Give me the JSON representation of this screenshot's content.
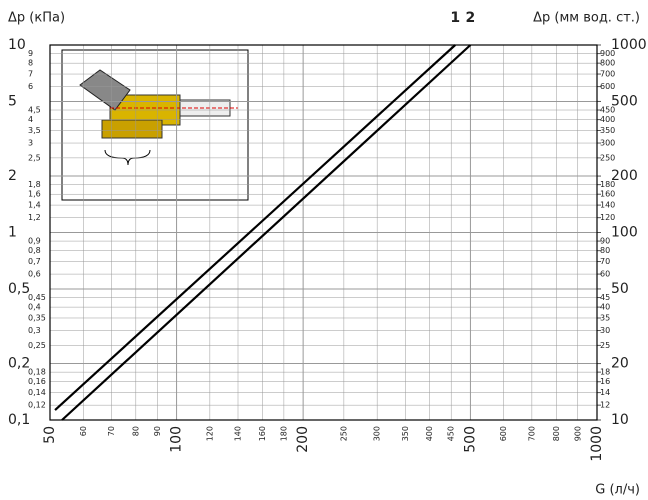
{
  "chart_data": {
    "type": "line",
    "y_title": "Δp (кПа)",
    "y2_title": "Δp (мм вод. ст.)",
    "x_title": "G (л/ч)",
    "log_x": true,
    "log_y": true,
    "grid": true,
    "xlim": [
      50,
      1000
    ],
    "ylim": [
      0.1,
      10
    ],
    "y2lim": [
      10,
      1000
    ],
    "xticks": [
      50,
      100,
      200,
      500,
      1000
    ],
    "xticks_minor": [
      60,
      70,
      80,
      90,
      120,
      140,
      160,
      180,
      250,
      300,
      350,
      400,
      450,
      600,
      700,
      800,
      900
    ],
    "yticks": [
      {
        "value": 0.1,
        "label": "0,1"
      },
      {
        "value": 0.2,
        "label": "0,2"
      },
      {
        "value": 0.5,
        "label": "0,5"
      },
      1,
      2,
      5,
      10
    ],
    "yticks_minor": [
      {
        "value": 0.12,
        "label": "0,12"
      },
      {
        "value": 0.14,
        "label": "0,14"
      },
      {
        "value": 0.16,
        "label": "0,16"
      },
      {
        "value": 0.18,
        "label": "0,18"
      },
      {
        "value": 0.25,
        "label": "0,25"
      },
      {
        "value": 0.3,
        "label": "0,3"
      },
      {
        "value": 0.35,
        "label": "0,35"
      },
      {
        "value": 0.4,
        "label": "0,4"
      },
      {
        "value": 0.45,
        "label": "0,45"
      },
      {
        "value": 0.6,
        "label": "0,6"
      },
      {
        "value": 0.7,
        "label": "0,7"
      },
      {
        "value": 0.8,
        "label": "0,8"
      },
      {
        "value": 0.9,
        "label": "0,9"
      },
      {
        "value": 1.2,
        "label": "1,2"
      },
      {
        "value": 1.4,
        "label": "1,4"
      },
      {
        "value": 1.6,
        "label": "1,6"
      },
      {
        "value": 1.8,
        "label": "1,8"
      },
      {
        "value": 2.5,
        "label": "2,5"
      },
      3,
      {
        "value": 3.5,
        "label": "3,5"
      },
      4,
      {
        "value": 4.5,
        "label": "4,5"
      },
      6,
      7,
      8,
      9
    ],
    "y2ticks": [
      10,
      20,
      50,
      100,
      200,
      500,
      1000
    ],
    "y2ticks_minor": [
      12,
      14,
      16,
      18,
      25,
      30,
      35,
      40,
      45,
      60,
      70,
      80,
      90,
      120,
      140,
      160,
      180,
      250,
      300,
      350,
      400,
      450,
      600,
      700,
      800,
      900
    ],
    "series": [
      {
        "name": "1",
        "color": "#000000",
        "x": [
          51.4,
          460
        ],
        "values": [
          0.113,
          10
        ]
      },
      {
        "name": "2",
        "color": "#000000",
        "x": [
          53.4,
          500
        ],
        "values": [
          0.1,
          10
        ]
      }
    ]
  }
}
